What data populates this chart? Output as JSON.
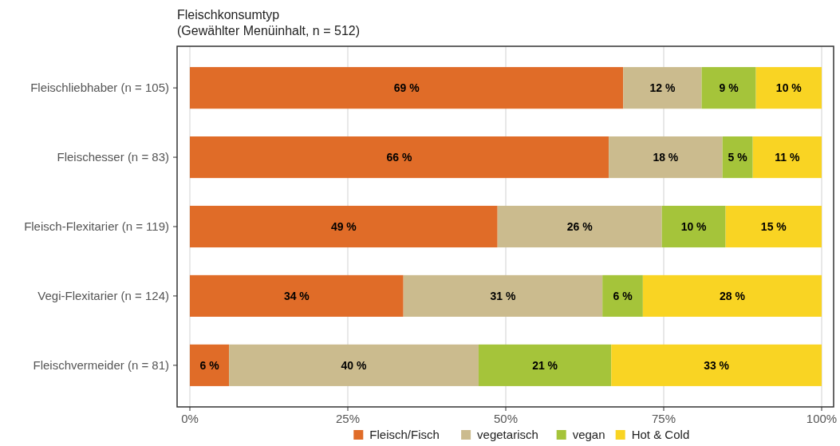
{
  "chart_data": {
    "type": "bar",
    "orientation": "horizontal",
    "stacked": true,
    "title": "Fleischkonsumtyp",
    "subtitle": "(Gewählter Menüinhalt, n =  512)",
    "categories": [
      "Fleischliebhaber (n = 105)",
      "Fleischesser (n = 83)",
      "Fleisch-Flexitarier (n = 119)",
      "Vegi-Flexitarier (n = 124)",
      "Fleischvermeider (n = 81)"
    ],
    "series": [
      {
        "name": "Fleisch/Fisch",
        "color": "#e06c28",
        "values": [
          68.6,
          66.3,
          48.7,
          33.8,
          6.2
        ],
        "value_labels": [
          "69 %",
          "66 %",
          "49 %",
          "34 %",
          "6 %"
        ]
      },
      {
        "name": "vegetarisch",
        "color": "#cbbb8e",
        "values": [
          12.4,
          18.0,
          26.0,
          31.5,
          39.5
        ],
        "value_labels": [
          "12 %",
          "18 %",
          "26 %",
          "31 %",
          "40 %"
        ]
      },
      {
        "name": "vegan",
        "color": "#a5c43a",
        "values": [
          8.6,
          4.8,
          10.1,
          6.4,
          21.0
        ],
        "value_labels": [
          "9 %",
          "5 %",
          "10 %",
          "6 %",
          "21 %"
        ]
      },
      {
        "name": "Hot & Cold",
        "color": "#f9d423",
        "values": [
          10.4,
          10.9,
          15.2,
          28.3,
          33.3
        ],
        "value_labels": [
          "10 %",
          "11 %",
          "15 %",
          "28 %",
          "33 %"
        ]
      }
    ],
    "xlim": [
      0,
      100
    ],
    "xticks": [
      {
        "value": 0,
        "label": "0%"
      },
      {
        "value": 25,
        "label": "25%"
      },
      {
        "value": 50,
        "label": "50%"
      },
      {
        "value": 75,
        "label": "75%"
      },
      {
        "value": 100,
        "label": "100%"
      }
    ],
    "grid": "x",
    "legend": "bottom"
  }
}
